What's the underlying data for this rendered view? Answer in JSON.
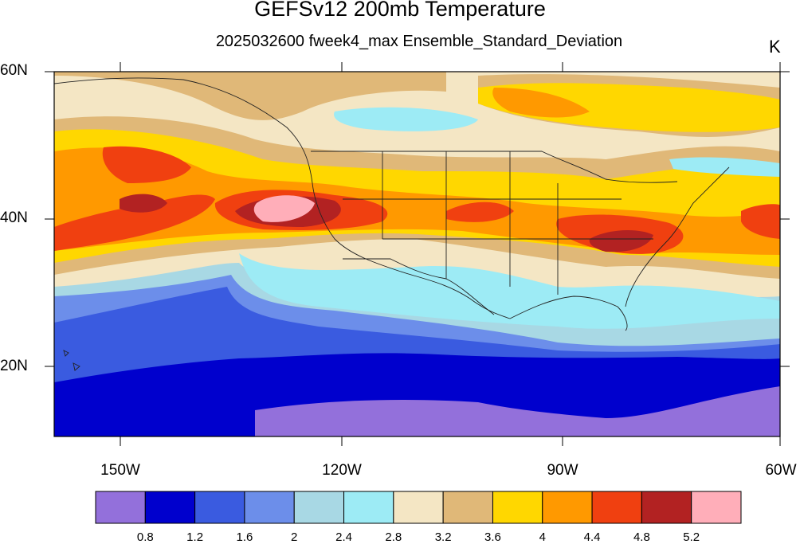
{
  "title": "GEFSv12 200mb Temperature",
  "subtitle": "2025032600 fweek4_max Ensemble_Standard_Deviation",
  "units": "K",
  "map": {
    "lat_labels": [
      "60N",
      "40N",
      "20N"
    ],
    "lon_labels": [
      "150W",
      "120W",
      "90W",
      "60W"
    ],
    "extent": {
      "lon_min": -159,
      "lon_max": -60,
      "lat_min": 10,
      "lat_max": 60
    }
  },
  "colorbar": {
    "colors": [
      "#9370DB",
      "#0000CD",
      "#3A5BE0",
      "#6C8EEA",
      "#A8D8E4",
      "#9DEBF5",
      "#F4E6C4",
      "#E0B878",
      "#FFD700",
      "#FF9900",
      "#F04010",
      "#B22222",
      "#FFAEB9"
    ],
    "labels": [
      "0.8",
      "1.2",
      "1.6",
      "2",
      "2.4",
      "2.8",
      "3.2",
      "3.6",
      "4",
      "4.4",
      "4.8",
      "5.2"
    ]
  }
}
